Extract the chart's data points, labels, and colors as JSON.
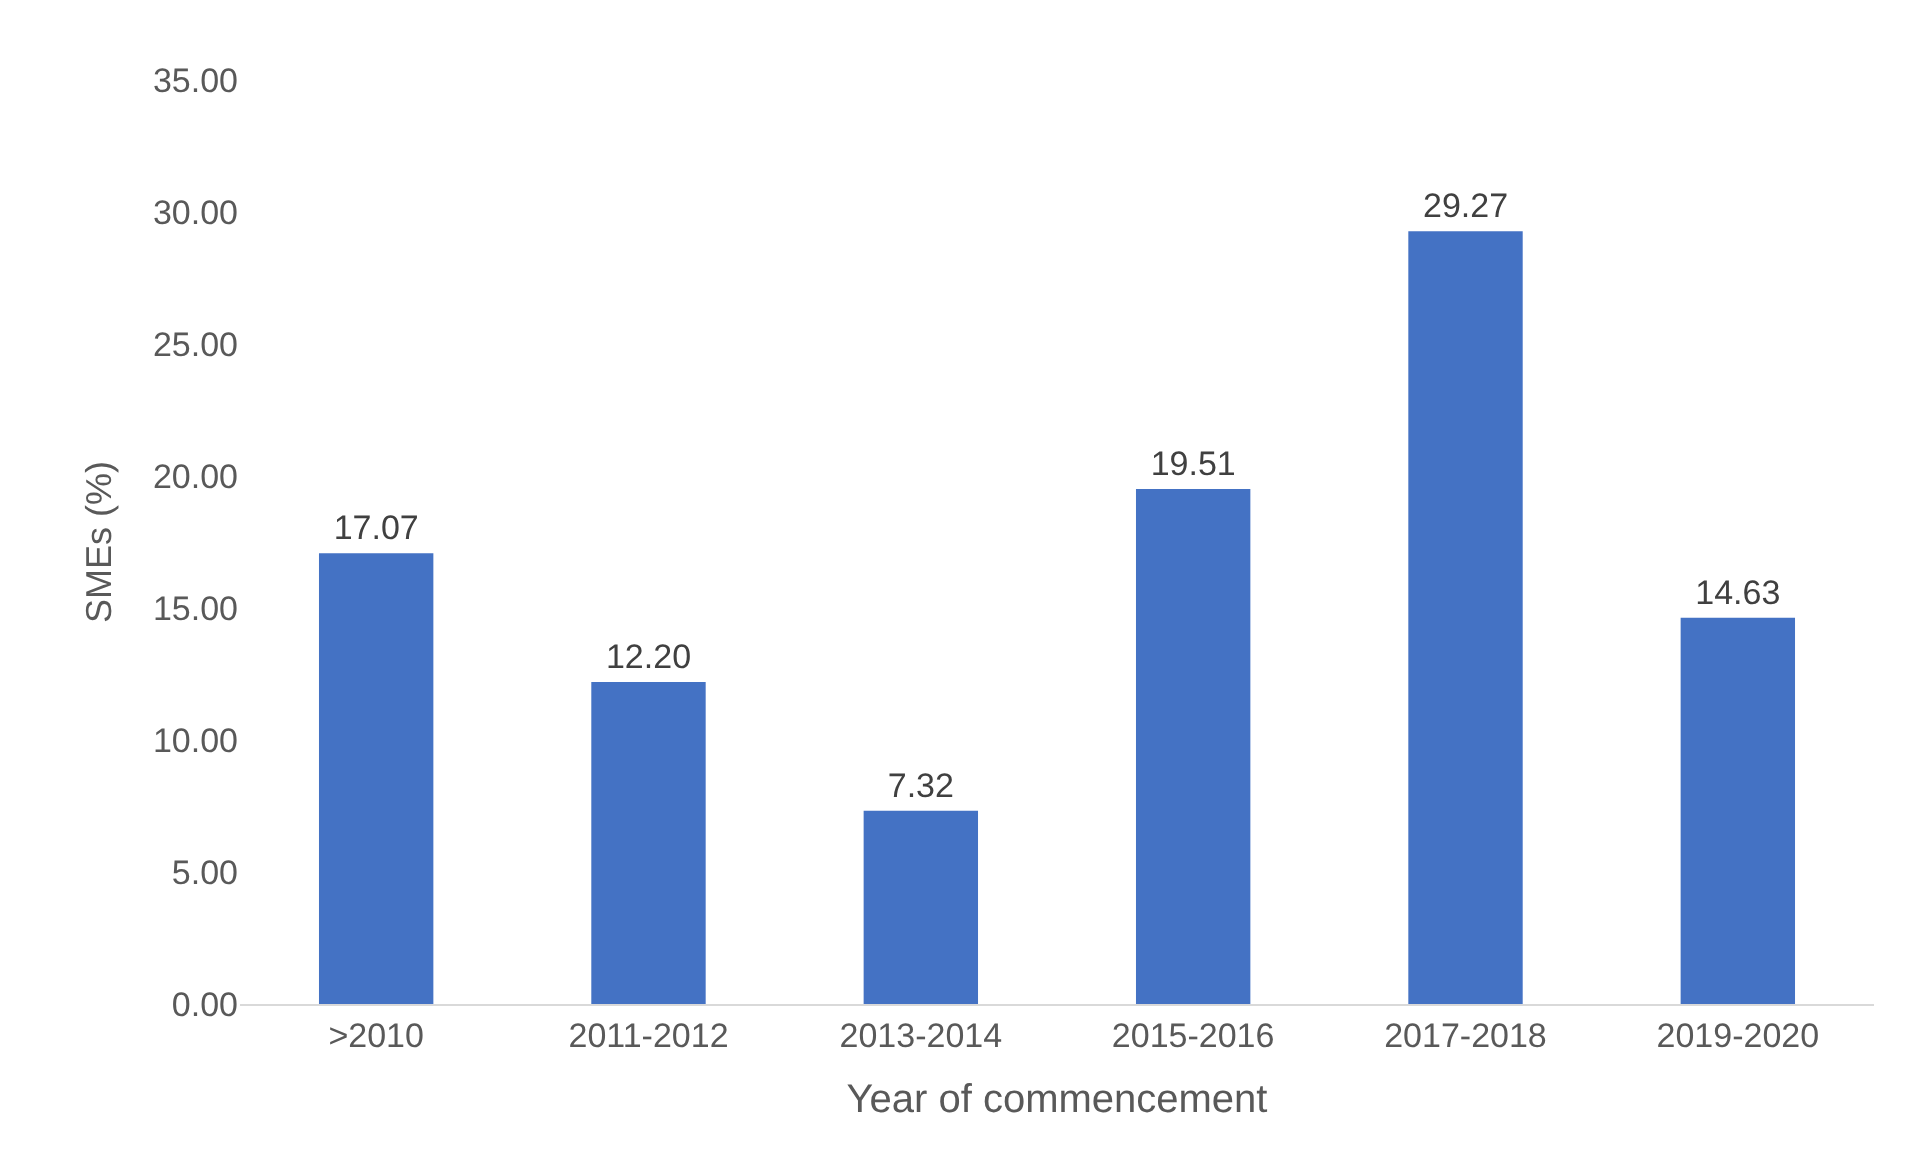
{
  "chart_data": {
    "type": "bar",
    "xlabel": "Year of commencement",
    "ylabel": "SMEs (%)",
    "categories": [
      ">2010",
      "2011-2012",
      "2013-2014",
      "2015-2016",
      "2017-2018",
      "2019-2020"
    ],
    "values": [
      17.07,
      12.2,
      7.32,
      19.51,
      29.27,
      14.63
    ],
    "value_labels": [
      "17.07",
      "12.20",
      "7.32",
      "19.51",
      "29.27",
      "14.63"
    ],
    "color": "#4472c4",
    "ylim": [
      0,
      35
    ],
    "yticks": [
      {
        "value": 0,
        "label": "0.00"
      },
      {
        "value": 5,
        "label": "5.00"
      },
      {
        "value": 10,
        "label": "10.00"
      },
      {
        "value": 15,
        "label": "15.00"
      },
      {
        "value": 20,
        "label": "20.00"
      },
      {
        "value": 25,
        "label": "25.00"
      },
      {
        "value": 30,
        "label": "30.00"
      },
      {
        "value": 35,
        "label": "35.00"
      }
    ]
  }
}
